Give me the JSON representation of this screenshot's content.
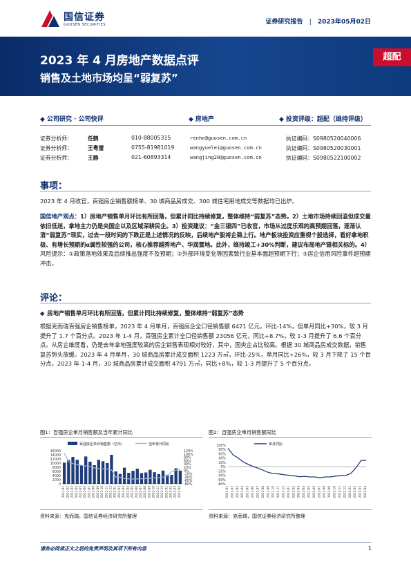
{
  "header": {
    "logo_cn": "国信证券",
    "logo_en": "GUOSEN SECURITIES",
    "report_type": "证券研究报告",
    "date": "2023年05月02日"
  },
  "banner": {
    "title": "2023 年 4 月房地产数据点评",
    "subtitle": "销售及土地市场均呈“弱复苏”",
    "rating_tag": "超配"
  },
  "categories": {
    "type": "公司研究 · 公司快评",
    "industry": "房地产",
    "rating": "投资评级：超配（维持评级）"
  },
  "analysts": [
    {
      "role": "证券分析师：",
      "name": "任鹤",
      "phone": "010-88005315",
      "email": "renhe@guosen.com.cn",
      "cert": "执证编码：S0980520040006"
    },
    {
      "role": "证券分析师：",
      "name": "王粤雷",
      "phone": "0755-81981019",
      "email": "wangyuelei@guosen.com.cn",
      "cert": "执证编码：S0980520030001"
    },
    {
      "role": "证券分析师：",
      "name": "王静",
      "phone": "021-60893314",
      "email": "wangjing20@guosen.com.cn",
      "cert": "执证编码：S0980522100002"
    }
  ],
  "event": {
    "heading": "事项：",
    "text": "2023 年 4 月收官，百强房企销售额榜单、30 城商品房成交、300 城住宅用地成交等数据均已出炉。"
  },
  "view": {
    "label": "国信地产观点：",
    "p1": "1）房地产销售单月环比有所回落，但累计同比持续修复，整体维持“弱复苏”态势。2）土地市场持续回温但成交量依旧低迷，拿地主力仍是央国企以及区域深耕民企。3）投资建议：",
    "p2": "“金三银四”已收官，市场从过度乐观的高预期回落，逐渐认清“弱复苏”现实，过去一段时间的下跌正是上述情况的反映，后续地产股将企稳上行。地产板块投资应重视个股选择，看好拿地积极、有增长预期的α属性较强的公司，核心推荐越秀地产、华润置地。此外，维持竣工+30%判断，建议布局地产链相关标的。4）",
    "p3": "风险提示：①政策落地效果及后续推出强度不及预期；②外部环境变化等因素致行业基本面超预期下行；③房企信用风险事件超预期冲击。"
  },
  "comment": {
    "heading": "评论：",
    "bullet": "房地产销售单月环比有所回落，但累计同比持续修复，整体维持“弱复苏”态势",
    "text": "根据克而瑞百强房企销售榜单，2023 年 4 月单月，百强房企全口径销售额 6421 亿元，环比-14%，但单月同比+30%，较 3 月提升了 1.7 个百分点。2023 年 1-4 月，百强房企累计全口径销售额 23056 亿元，同比+8.7%，较 1-3 月提升了 6.6 个百分点。从房企维度看，仍是去年拿地强度较高的房企销售表现相对较好，其中，国央企占比较高。根据 30 城商品房成交数据，销售复苏势头放缓。2023 年 4 月单月，30 城商品房累计成交面积 1223 万㎡，环比-25%，单月同比+26%，较 3 月下降了 15 个百分点。2023 年 1-4 月，30 城商品房累计成交面积 4791 万㎡，同比+8%，较 1-3 月提升了 5 个百分点。"
  },
  "figures": {
    "fig1_caption": "图1：百强房企单月销售额及当年累计同比",
    "fig2_caption": "图2：百强房企单月销售额同比",
    "source": "资料来源：克而瑞，国信证券经济研究所整理"
  },
  "colors": {
    "brand": "#0d2f6f",
    "accent": "#c8102e",
    "bar": "#1f3d7a",
    "line": "#9fb3d1"
  },
  "chart_data": [
    {
      "type": "bar",
      "series": [
        {
          "name": "百强房企单月销售额（亿元）",
          "kind": "bar",
          "axis": "left",
          "values": [
            10200,
            11500,
            13000,
            11600,
            9000,
            13200,
            10700,
            9000,
            11600,
            10900,
            10000,
            14000,
            6000,
            4800,
            7800,
            5300,
            6300,
            7300,
            5200,
            5500,
            6800,
            5600,
            4700,
            6400,
            4400,
            4300,
            7500,
            6400
          ]
        },
        {
          "name": "当年累计同比",
          "kind": "line",
          "axis": "right",
          "values": [
            104,
            55,
            42,
            36,
            32,
            28,
            24,
            16,
            12,
            10,
            9,
            4,
            -39,
            -40,
            -47,
            -50,
            -51,
            -50,
            -49,
            -48,
            -46,
            -44,
            -43,
            -40,
            -32,
            -6,
            3,
            9
          ]
        }
      ],
      "categories": [
        "2021-01",
        "2021-02",
        "2021-03",
        "2021-04",
        "2021-05",
        "2021-06",
        "2021-07",
        "2021-08",
        "2021-09",
        "2021-10",
        "2021-11",
        "2021-12",
        "2022-01",
        "2022-02",
        "2022-03",
        "2022-04",
        "2022-05",
        "2022-06",
        "2022-07",
        "2022-08",
        "2022-09",
        "2022-10",
        "2022-11",
        "2022-12",
        "2023-01",
        "2023-02",
        "2023-03",
        "2023-04"
      ],
      "ylim_left": [
        0,
        16000
      ],
      "yticks_left": [
        "0",
        "2000",
        "4000",
        "6000",
        "8000",
        "10000",
        "12000",
        "14000",
        "16000"
      ],
      "ylim_right": [
        -80,
        120
      ],
      "yticks_right": [
        "-80%",
        "-60%",
        "-40%",
        "-20%",
        "0%",
        "20%",
        "40%",
        "60%",
        "80%",
        "100%",
        "120%"
      ],
      "legend": "top"
    },
    {
      "type": "line",
      "series": [
        {
          "name": "单月同比",
          "values": [
            86,
            55,
            40,
            22,
            10,
            0,
            -8,
            -18,
            -28,
            -32,
            -34,
            -38,
            -40,
            -43,
            -47,
            -45,
            -48,
            -48,
            -52,
            -48,
            -48,
            -44,
            -42,
            -41,
            -32,
            -6,
            28,
            30
          ]
        }
      ],
      "categories": [
        "2021-01",
        "2021-02",
        "2021-03",
        "2021-04",
        "2021-05",
        "2021-06",
        "2021-07",
        "2021-08",
        "2021-09",
        "2021-10",
        "2021-11",
        "2021-12",
        "2022-01",
        "2022-02",
        "2022-03",
        "2022-04",
        "2022-05",
        "2022-06",
        "2022-07",
        "2022-08",
        "2022-09",
        "2022-10",
        "2022-11",
        "2022-12",
        "2023-01",
        "2023-02",
        "2023-03",
        "2023-04"
      ],
      "ylim": [
        -80,
        100
      ],
      "yticks": [
        "-80%",
        "-60%",
        "-40%",
        "-20%",
        "0%",
        "20%",
        "40%",
        "60%",
        "80%",
        "100%"
      ],
      "legend": "top-left"
    }
  ]
}
